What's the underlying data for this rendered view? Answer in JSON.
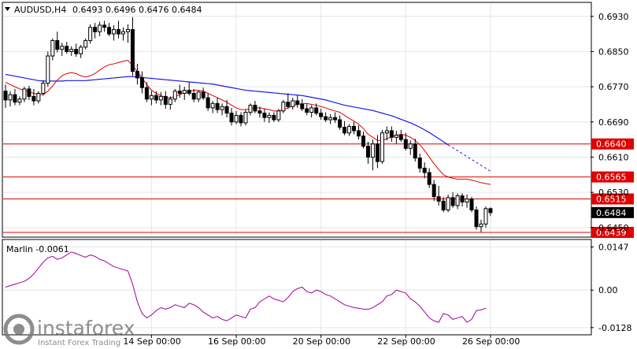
{
  "header": {
    "symbol": "AUDUSD,H4",
    "ohlc": "0.6493 0.6496 0.6476 0.6484"
  },
  "chart_data": {
    "type": "candlestick",
    "symbol": "AUDUSD",
    "timeframe": "H4",
    "ylim": [
      0.643,
      0.696
    ],
    "y_ticks": [
      "0.6930",
      "0.6850",
      "0.6770",
      "0.6690",
      "0.6610",
      "0.6530",
      "0.6450"
    ],
    "x_ticks": [
      "14 Sep 00:00",
      "16 Sep 00:00",
      "20 Sep 00:00",
      "22 Sep 00:00",
      "26 Sep 00:00"
    ],
    "x_ticks_index": [
      31,
      49,
      67,
      85,
      103
    ],
    "candles": [
      [
        0.676,
        0.6775,
        0.6722,
        0.674
      ],
      [
        0.674,
        0.676,
        0.6725,
        0.6752
      ],
      [
        0.6752,
        0.6765,
        0.6728,
        0.6735
      ],
      [
        0.6735,
        0.6748,
        0.6728,
        0.6742
      ],
      [
        0.6742,
        0.677,
        0.6735,
        0.6765
      ],
      [
        0.6765,
        0.6772,
        0.674,
        0.6748
      ],
      [
        0.6748,
        0.6765,
        0.6728,
        0.6738
      ],
      [
        0.6738,
        0.676,
        0.6732,
        0.6755
      ],
      [
        0.6755,
        0.6785,
        0.675,
        0.6778
      ],
      [
        0.6778,
        0.685,
        0.677,
        0.684
      ],
      [
        0.684,
        0.688,
        0.683,
        0.6875
      ],
      [
        0.6875,
        0.6895,
        0.6848,
        0.6855
      ],
      [
        0.6855,
        0.687,
        0.684,
        0.6862
      ],
      [
        0.6862,
        0.6872,
        0.6845,
        0.685
      ],
      [
        0.685,
        0.6862,
        0.684,
        0.6855
      ],
      [
        0.6855,
        0.6868,
        0.6838,
        0.6845
      ],
      [
        0.6845,
        0.6865,
        0.6835,
        0.686
      ],
      [
        0.686,
        0.688,
        0.6855,
        0.6875
      ],
      [
        0.6875,
        0.6912,
        0.6868,
        0.6905
      ],
      [
        0.6905,
        0.6915,
        0.688,
        0.6895
      ],
      [
        0.6895,
        0.6918,
        0.6885,
        0.691
      ],
      [
        0.691,
        0.692,
        0.6895,
        0.6905
      ],
      [
        0.6905,
        0.6915,
        0.6885,
        0.689
      ],
      [
        0.689,
        0.691,
        0.6875,
        0.69
      ],
      [
        0.69,
        0.692,
        0.688,
        0.689
      ],
      [
        0.689,
        0.6905,
        0.6875,
        0.6895
      ],
      [
        0.6895,
        0.6912,
        0.687,
        0.69
      ],
      [
        0.69,
        0.6928,
        0.6795,
        0.6805
      ],
      [
        0.6805,
        0.6822,
        0.6775,
        0.679
      ],
      [
        0.679,
        0.6805,
        0.6755,
        0.6768
      ],
      [
        0.6768,
        0.678,
        0.6735,
        0.6742
      ],
      [
        0.6742,
        0.676,
        0.6728,
        0.675
      ],
      [
        0.675,
        0.676,
        0.6732,
        0.674
      ],
      [
        0.674,
        0.6758,
        0.6728,
        0.6748
      ],
      [
        0.6748,
        0.676,
        0.672,
        0.673
      ],
      [
        0.673,
        0.6748,
        0.6718,
        0.6742
      ],
      [
        0.6742,
        0.6765,
        0.6735,
        0.676
      ],
      [
        0.676,
        0.6775,
        0.6745,
        0.6755
      ],
      [
        0.6755,
        0.677,
        0.674,
        0.6762
      ],
      [
        0.6762,
        0.678,
        0.675,
        0.6755
      ],
      [
        0.6755,
        0.6765,
        0.6735,
        0.6742
      ],
      [
        0.6742,
        0.6762,
        0.6735,
        0.6758
      ],
      [
        0.6758,
        0.6768,
        0.674,
        0.6745
      ],
      [
        0.6745,
        0.6755,
        0.6715,
        0.6722
      ],
      [
        0.6722,
        0.6738,
        0.671,
        0.6732
      ],
      [
        0.6732,
        0.6745,
        0.671,
        0.6718
      ],
      [
        0.6718,
        0.6732,
        0.6705,
        0.6725
      ],
      [
        0.6725,
        0.674,
        0.67,
        0.671
      ],
      [
        0.671,
        0.6722,
        0.6682,
        0.669
      ],
      [
        0.669,
        0.6715,
        0.6685,
        0.6705
      ],
      [
        0.6705,
        0.6712,
        0.668,
        0.6688
      ],
      [
        0.6688,
        0.6718,
        0.6682,
        0.6712
      ],
      [
        0.6712,
        0.6732,
        0.6705,
        0.6728
      ],
      [
        0.6728,
        0.6738,
        0.671,
        0.6715
      ],
      [
        0.6715,
        0.6725,
        0.67,
        0.671
      ],
      [
        0.671,
        0.672,
        0.669,
        0.67
      ],
      [
        0.67,
        0.6712,
        0.6688,
        0.6705
      ],
      [
        0.6705,
        0.6712,
        0.669,
        0.6695
      ],
      [
        0.6695,
        0.672,
        0.669,
        0.6715
      ],
      [
        0.6715,
        0.674,
        0.671,
        0.6735
      ],
      [
        0.6735,
        0.6755,
        0.672,
        0.6725
      ],
      [
        0.6725,
        0.6745,
        0.6718,
        0.6738
      ],
      [
        0.6738,
        0.675,
        0.6722,
        0.673
      ],
      [
        0.673,
        0.6742,
        0.6715,
        0.672
      ],
      [
        0.672,
        0.6732,
        0.6705,
        0.6712
      ],
      [
        0.6712,
        0.6728,
        0.67,
        0.6722
      ],
      [
        0.6722,
        0.6732,
        0.6705,
        0.671
      ],
      [
        0.671,
        0.672,
        0.6695,
        0.6702
      ],
      [
        0.6702,
        0.6712,
        0.669,
        0.6695
      ],
      [
        0.6695,
        0.6708,
        0.6685,
        0.67
      ],
      [
        0.67,
        0.6712,
        0.6688,
        0.6695
      ],
      [
        0.6695,
        0.6705,
        0.6672,
        0.6678
      ],
      [
        0.6678,
        0.6692,
        0.666,
        0.6665
      ],
      [
        0.6665,
        0.6685,
        0.6658,
        0.668
      ],
      [
        0.668,
        0.669,
        0.6662,
        0.667
      ],
      [
        0.667,
        0.6682,
        0.665,
        0.6658
      ],
      [
        0.6658,
        0.6668,
        0.663,
        0.6635
      ],
      [
        0.6635,
        0.6645,
        0.6595,
        0.661
      ],
      [
        0.661,
        0.665,
        0.658,
        0.664
      ],
      [
        0.664,
        0.666,
        0.6585,
        0.66
      ],
      [
        0.66,
        0.6672,
        0.6595,
        0.6665
      ],
      [
        0.6665,
        0.668,
        0.6648,
        0.667
      ],
      [
        0.667,
        0.668,
        0.6645,
        0.6655
      ],
      [
        0.6655,
        0.667,
        0.664,
        0.666
      ],
      [
        0.666,
        0.6672,
        0.6645,
        0.665
      ],
      [
        0.665,
        0.6665,
        0.6625,
        0.663
      ],
      [
        0.663,
        0.6648,
        0.6615,
        0.664
      ],
      [
        0.664,
        0.6652,
        0.66,
        0.6608
      ],
      [
        0.6608,
        0.6618,
        0.6575,
        0.6585
      ],
      [
        0.6585,
        0.6598,
        0.6562,
        0.6575
      ],
      [
        0.6575,
        0.6585,
        0.654,
        0.6548
      ],
      [
        0.6548,
        0.6558,
        0.651,
        0.652
      ],
      [
        0.652,
        0.6545,
        0.65,
        0.651
      ],
      [
        0.651,
        0.652,
        0.6485,
        0.649
      ],
      [
        0.649,
        0.6525,
        0.6485,
        0.6518
      ],
      [
        0.6518,
        0.653,
        0.6495,
        0.65
      ],
      [
        0.65,
        0.6528,
        0.6492,
        0.6522
      ],
      [
        0.6522,
        0.6528,
        0.6498,
        0.6508
      ],
      [
        0.6508,
        0.6525,
        0.6495,
        0.6515
      ],
      [
        0.6515,
        0.652,
        0.6485,
        0.649
      ],
      [
        0.649,
        0.6498,
        0.6445,
        0.6452
      ],
      [
        0.6452,
        0.6468,
        0.644,
        0.6458
      ],
      [
        0.6458,
        0.6498,
        0.645,
        0.6493
      ],
      [
        0.6493,
        0.6496,
        0.6476,
        0.6484
      ]
    ],
    "red_line": [
      0.678,
      0.6775,
      0.677,
      0.6765,
      0.6762,
      0.6758,
      0.6755,
      0.6752,
      0.6752,
      0.676,
      0.6772,
      0.6785,
      0.6795,
      0.68,
      0.6802,
      0.68,
      0.6795,
      0.6792,
      0.6795,
      0.68,
      0.6808,
      0.6815,
      0.682,
      0.6822,
      0.6825,
      0.6828,
      0.683,
      0.6818,
      0.6805,
      0.679,
      0.6775,
      0.6762,
      0.6755,
      0.675,
      0.6745,
      0.6745,
      0.6748,
      0.6752,
      0.6756,
      0.676,
      0.6762,
      0.6762,
      0.676,
      0.6755,
      0.675,
      0.6745,
      0.674,
      0.6735,
      0.6728,
      0.6722,
      0.6718,
      0.6718,
      0.672,
      0.6722,
      0.6722,
      0.672,
      0.6718,
      0.6715,
      0.6715,
      0.6718,
      0.6722,
      0.6726,
      0.673,
      0.6732,
      0.6732,
      0.673,
      0.6728,
      0.6725,
      0.6722,
      0.6718,
      0.6715,
      0.6712,
      0.6705,
      0.6698,
      0.6692,
      0.6685,
      0.6675,
      0.6662,
      0.6655,
      0.6648,
      0.6648,
      0.6652,
      0.6656,
      0.666,
      0.6662,
      0.666,
      0.6655,
      0.6648,
      0.6638,
      0.6625,
      0.661,
      0.6595,
      0.6582,
      0.657,
      0.6565,
      0.6562,
      0.656,
      0.656,
      0.656,
      0.6558,
      0.6555,
      0.6552,
      0.655,
      0.6548
    ],
    "blue_line": [
      0.6798,
      0.6796,
      0.6794,
      0.6792,
      0.679,
      0.6788,
      0.6786,
      0.6784,
      0.6783,
      0.6783,
      0.6783,
      0.6783,
      0.6783,
      0.6784,
      0.6784,
      0.6784,
      0.6784,
      0.6784,
      0.6785,
      0.6786,
      0.6787,
      0.6788,
      0.6789,
      0.679,
      0.6791,
      0.6792,
      0.6793,
      0.6793,
      0.6792,
      0.6791,
      0.679,
      0.6789,
      0.6788,
      0.6787,
      0.6786,
      0.6785,
      0.6784,
      0.6783,
      0.6782,
      0.6781,
      0.678,
      0.6779,
      0.6778,
      0.6777,
      0.6776,
      0.6774,
      0.6772,
      0.677,
      0.6768,
      0.6766,
      0.6764,
      0.6762,
      0.6761,
      0.676,
      0.6759,
      0.6758,
      0.6757,
      0.6756,
      0.6755,
      0.6754,
      0.6753,
      0.6752,
      0.6751,
      0.675,
      0.6748,
      0.6746,
      0.6744,
      0.6742,
      0.674,
      0.6737,
      0.6734,
      0.6731,
      0.6728,
      0.6726,
      0.6724,
      0.6722,
      0.672,
      0.6718,
      0.6716,
      0.6713,
      0.671,
      0.6707,
      0.6704,
      0.67,
      0.6696,
      0.6692,
      0.6688,
      0.6683,
      0.6678,
      0.6672,
      0.6666,
      0.6659,
      0.6652,
      0.6645,
      0.6638
    ],
    "blue_dashed": [
      [
        94,
        0.6638
      ],
      [
        103,
        0.6578
      ]
    ],
    "h_levels": [
      {
        "value": 0.664,
        "label": "0.6640"
      },
      {
        "value": 0.6565,
        "label": "0.6565"
      },
      {
        "value": 0.6515,
        "label": "0.6515"
      },
      {
        "value": 0.6439,
        "label": "0.6439"
      }
    ],
    "current_price": {
      "value": 0.6484,
      "label": "0.6484"
    },
    "oscillator": {
      "name": "Marlin",
      "label": "Marlin -0.0061",
      "ylim": [
        -0.015,
        0.017
      ],
      "y_ticks": [
        "0.0147",
        "0.00",
        "-0.0128"
      ],
      "values": [
        0.001,
        0.0015,
        0.002,
        0.0025,
        0.003,
        0.004,
        0.0055,
        0.0075,
        0.0095,
        0.011,
        0.0115,
        0.0105,
        0.011,
        0.012,
        0.013,
        0.0125,
        0.0118,
        0.0112,
        0.012,
        0.0115,
        0.0105,
        0.01,
        0.009,
        0.008,
        0.0075,
        0.007,
        0.0065,
        0.002,
        -0.004,
        -0.008,
        -0.0095,
        -0.0085,
        -0.007,
        -0.006,
        -0.0065,
        -0.006,
        -0.005,
        -0.0055,
        -0.006,
        -0.0045,
        -0.005,
        -0.006,
        -0.0075,
        -0.0085,
        -0.0095,
        -0.009,
        -0.01,
        -0.0105,
        -0.0095,
        -0.0085,
        -0.009,
        -0.0095,
        -0.0065,
        -0.006,
        -0.004,
        -0.003,
        -0.002,
        -0.003,
        -0.0035,
        -0.004,
        -0.0025,
        -0.0005,
        0.0005,
        0.001,
        -0.0005,
        -0.001,
        0.0,
        -0.0005,
        -0.0015,
        -0.002,
        -0.003,
        -0.004,
        -0.005,
        -0.0055,
        -0.006,
        -0.0062,
        -0.0065,
        -0.0066,
        -0.006,
        -0.005,
        -0.004,
        -0.002,
        -0.0015,
        0.0,
        -0.0005,
        -0.001,
        -0.003,
        -0.004,
        -0.0055,
        -0.0075,
        -0.0095,
        -0.0105,
        -0.011,
        -0.008,
        -0.0085,
        -0.01,
        -0.0095,
        -0.009,
        -0.011,
        -0.01,
        -0.007,
        -0.0068,
        -0.0061
      ]
    }
  },
  "watermark": {
    "brand": "instaforex",
    "tagline": "Instant Forex Trading"
  }
}
